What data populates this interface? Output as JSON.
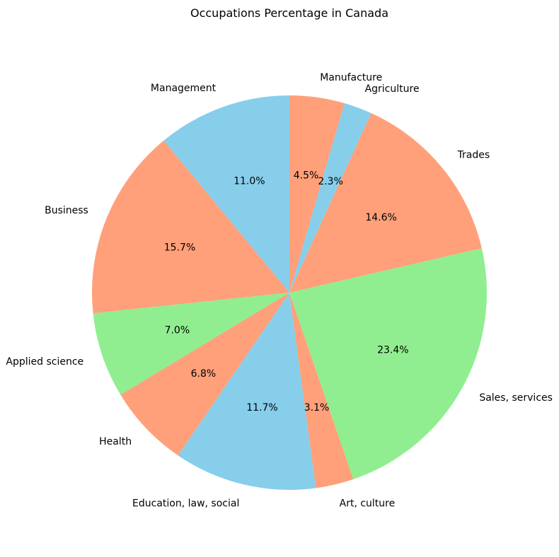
{
  "chart_data": {
    "type": "pie",
    "title": "Occupations Percentage in Canada",
    "start_angle_deg": 90,
    "direction": "counterclockwise",
    "slices": [
      {
        "label": "Management",
        "value": 11.0,
        "pct_text": "11.0%",
        "color": "#87CEEB"
      },
      {
        "label": "Business",
        "value": 15.7,
        "pct_text": "15.7%",
        "color": "#FFA07A"
      },
      {
        "label": "Applied science",
        "value": 7.0,
        "pct_text": "7.0%",
        "color": "#90EE90"
      },
      {
        "label": "Health",
        "value": 6.8,
        "pct_text": "6.8%",
        "color": "#FFA07A"
      },
      {
        "label": "Education, law, social",
        "value": 11.7,
        "pct_text": "11.7%",
        "color": "#87CEEB"
      },
      {
        "label": "Art, culture",
        "value": 3.1,
        "pct_text": "3.1%",
        "color": "#FFA07A"
      },
      {
        "label": "Sales, services",
        "value": 23.4,
        "pct_text": "23.4%",
        "color": "#90EE90"
      },
      {
        "label": "Trades",
        "value": 14.6,
        "pct_text": "14.6%",
        "color": "#FFA07A"
      },
      {
        "label": "Agriculture",
        "value": 2.3,
        "pct_text": "2.3%",
        "color": "#87CEEB"
      },
      {
        "label": "Manufacture",
        "value": 4.5,
        "pct_text": "4.5%",
        "color": "#FFA07A"
      }
    ]
  }
}
